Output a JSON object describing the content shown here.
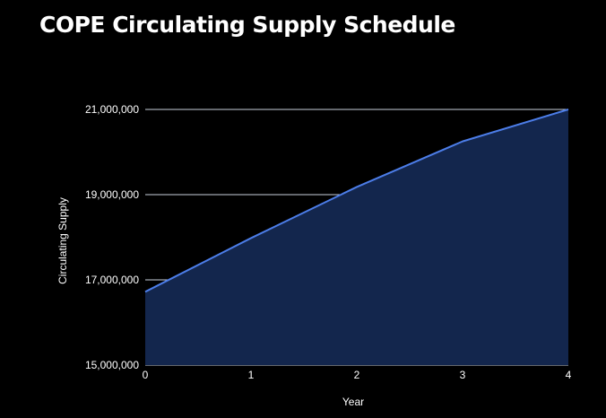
{
  "chart_data": {
    "type": "area",
    "title": "COPE Circulating Supply Schedule",
    "xlabel": "Year",
    "ylabel": "Circulating Supply",
    "x": [
      0,
      1,
      2,
      3,
      4
    ],
    "x_tick_labels": [
      "0",
      "1",
      "2",
      "3",
      "4"
    ],
    "y_tick_values": [
      15000000,
      17000000,
      19000000,
      21000000
    ],
    "y_tick_labels": [
      "15,000,000",
      "17,000,000",
      "19,000,000",
      "21,000,000"
    ],
    "ylim": [
      15000000,
      21000000
    ],
    "xlim": [
      0,
      4
    ],
    "series": [
      {
        "values": [
          16720000,
          17980000,
          19180000,
          20250000,
          21000000
        ]
      }
    ],
    "grid": true,
    "legend": "none",
    "colors": {
      "background": "#000000",
      "line": "#4c7de8",
      "fill": "#13264d",
      "gridline": "#c8cfdc",
      "text": "#ffffff"
    }
  }
}
